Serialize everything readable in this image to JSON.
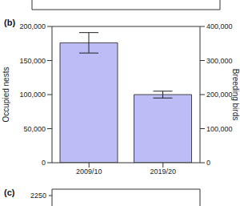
{
  "chart_data": [
    {
      "type": "bar",
      "title": "(b)",
      "categories": [
        "2009/10",
        "2019/20"
      ],
      "values": [
        176000,
        100000
      ],
      "errors": [
        15000,
        5000
      ],
      "color": "#bcbcf6",
      "ylabel": "Occupied nests",
      "y2label": "Breeding birds",
      "ylim": [
        0,
        200000
      ],
      "yticks": [
        0,
        {
          "value": 50000,
          "label": "50,000"
        },
        {
          "value": 100000,
          "label": "100,000"
        },
        {
          "value": 150000,
          "label": "150,000"
        },
        {
          "value": 200000,
          "label": "200,000"
        }
      ],
      "y2lim": [
        0,
        400000
      ],
      "y2ticks": [
        0,
        {
          "value": 100000,
          "label": "100,000"
        },
        {
          "value": 200000,
          "label": "200,000"
        },
        {
          "value": 300000,
          "label": "300,000"
        },
        {
          "value": 400000,
          "label": "400,000"
        }
      ],
      "grid": false
    },
    {
      "type": "line",
      "title": "(c)",
      "yticks": [
        2250
      ]
    }
  ]
}
